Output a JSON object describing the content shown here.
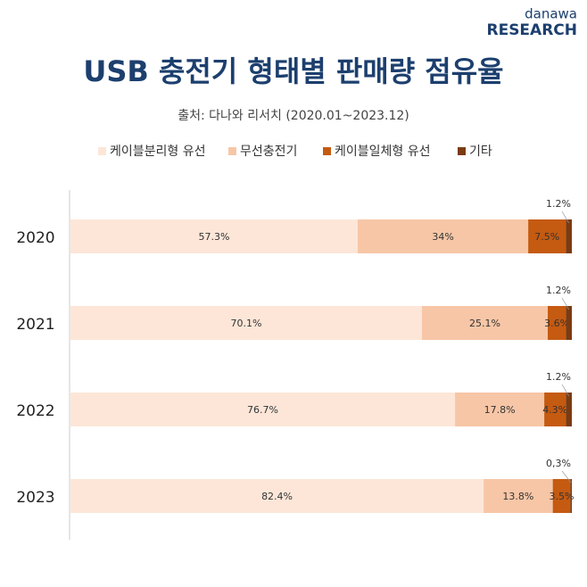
{
  "brand": {
    "top": "danawa",
    "bottom": "RESEARCH"
  },
  "chart_data": {
    "type": "stacked-bar-horizontal",
    "title": "USB 충전기 형태별 판매량 점유율",
    "subtitle": "출처: 다나와 리서치 (2020.01~2023.12)",
    "categories": [
      "2020",
      "2021",
      "2022",
      "2023"
    ],
    "xlim": [
      0,
      100
    ],
    "series": [
      {
        "name": "케이블분리형 유선",
        "color": "#fde6d8",
        "values": [
          57.3,
          70.1,
          76.7,
          82.4
        ],
        "value_labels": [
          "57.3%",
          "70.1%",
          "76.7%",
          "82.4%"
        ]
      },
      {
        "name": "무선충전기",
        "color": "#f7c6a6",
        "values": [
          34,
          25.1,
          17.8,
          13.8
        ],
        "value_labels": [
          "34%",
          "25.1%",
          "17.8%",
          "13.8%"
        ]
      },
      {
        "name": "케이블일체형 유선",
        "color": "#c55a11",
        "values": [
          7.5,
          3.6,
          4.3,
          3.5
        ],
        "value_labels": [
          "7.5%",
          "3.6%",
          "4.3%",
          "3.5%"
        ]
      },
      {
        "name": "기타",
        "color": "#7b3b12",
        "values": [
          1.2,
          1.2,
          1.2,
          0.3
        ],
        "value_labels": [
          "1.2%",
          "1.2%",
          "1.2%",
          "0,3%"
        ]
      }
    ]
  }
}
